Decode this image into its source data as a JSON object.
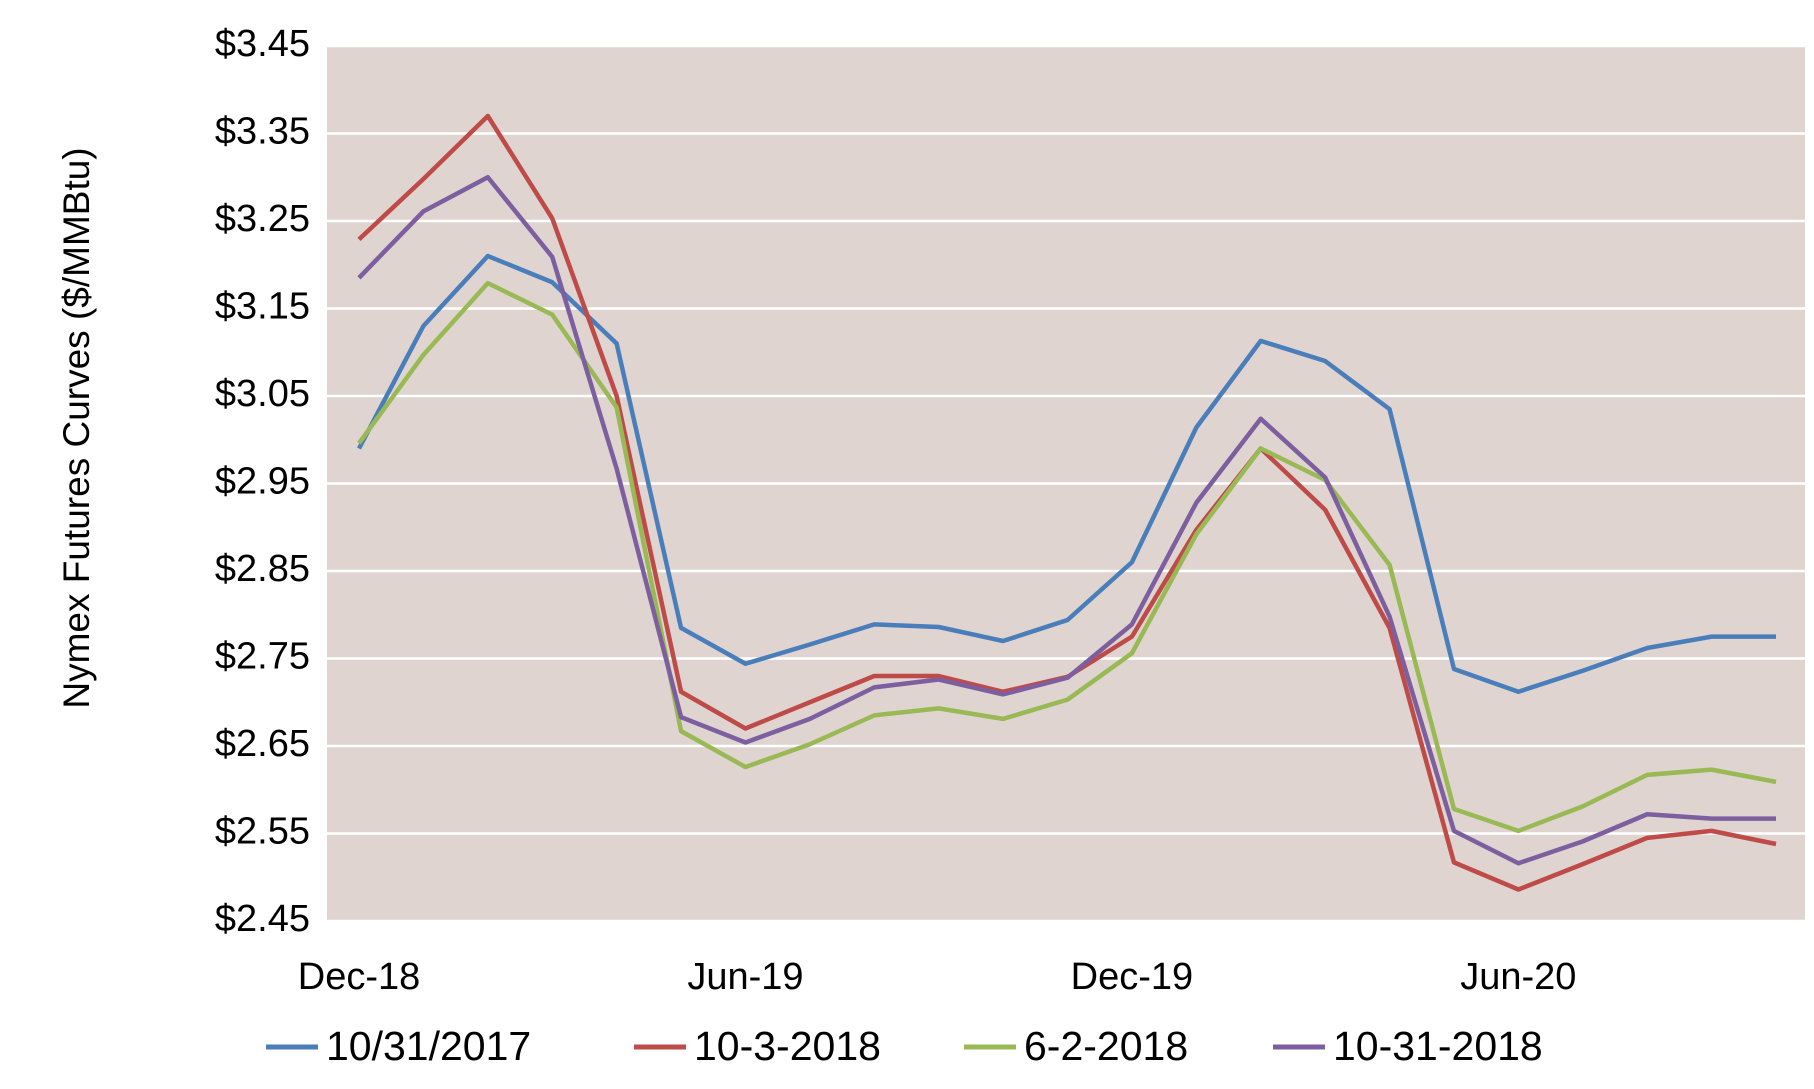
{
  "chart_data": {
    "type": "line",
    "y_label": "Nymex Futures Curves ($/MMBtu)",
    "categories": [
      "Dec-18",
      null,
      null,
      null,
      null,
      null,
      "Jun-19",
      null,
      null,
      null,
      null,
      null,
      "Dec-19",
      null,
      null,
      null,
      null,
      null,
      "Jun-20",
      null,
      null,
      null,
      null
    ],
    "series": [
      {
        "name": "10/31/2017",
        "color": "#4a7ebb",
        "values": [
          2.99,
          3.13,
          3.21,
          3.18,
          3.11,
          2.785,
          2.744,
          2.766,
          2.789,
          2.786,
          2.77,
          2.794,
          2.86,
          3.014,
          3.113,
          3.09,
          3.035,
          2.738,
          2.712,
          2.736,
          2.762,
          2.775,
          2.775
        ]
      },
      {
        "name": "10-3-2018",
        "color": "#be4b48",
        "values": [
          3.229,
          3.298,
          3.37,
          3.253,
          3.05,
          2.712,
          2.67,
          2.7,
          2.73,
          2.73,
          2.712,
          2.729,
          2.775,
          2.897,
          2.99,
          2.92,
          2.785,
          2.517,
          2.486,
          2.515,
          2.545,
          2.553,
          2.538
        ]
      },
      {
        "name": "6-2-2018",
        "color": "#98b954",
        "values": [
          2.996,
          3.097,
          3.179,
          3.143,
          3.037,
          2.667,
          2.626,
          2.652,
          2.685,
          2.693,
          2.681,
          2.703,
          2.756,
          2.892,
          2.99,
          2.954,
          2.857,
          2.578,
          2.553,
          2.581,
          2.617,
          2.623,
          2.609
        ]
      },
      {
        "name": "10-31-2018",
        "color": "#7d5fa0",
        "values": [
          3.185,
          3.261,
          3.3,
          3.209,
          2.967,
          2.683,
          2.654,
          2.681,
          2.717,
          2.726,
          2.709,
          2.728,
          2.789,
          2.928,
          3.024,
          2.957,
          2.798,
          2.553,
          2.516,
          2.541,
          2.572,
          2.567,
          2.567
        ]
      }
    ],
    "ylim": [
      2.45,
      3.45
    ],
    "yticks": [
      {
        "value": 2.45,
        "label": "$2.45"
      },
      {
        "value": 2.55,
        "label": "$2.55"
      },
      {
        "value": 2.65,
        "label": "$2.65"
      },
      {
        "value": 2.75,
        "label": "$2.75"
      },
      {
        "value": 2.85,
        "label": "$2.85"
      },
      {
        "value": 2.95,
        "label": "$2.95"
      },
      {
        "value": 3.05,
        "label": "$3.05"
      },
      {
        "value": 3.15,
        "label": "$3.15"
      },
      {
        "value": 3.25,
        "label": "$3.25"
      },
      {
        "value": 3.35,
        "label": "$3.35"
      },
      {
        "value": 3.45,
        "label": "$3.45"
      }
    ],
    "grid": true,
    "legend": "bottom",
    "plot_background": "#dfd4d0"
  }
}
